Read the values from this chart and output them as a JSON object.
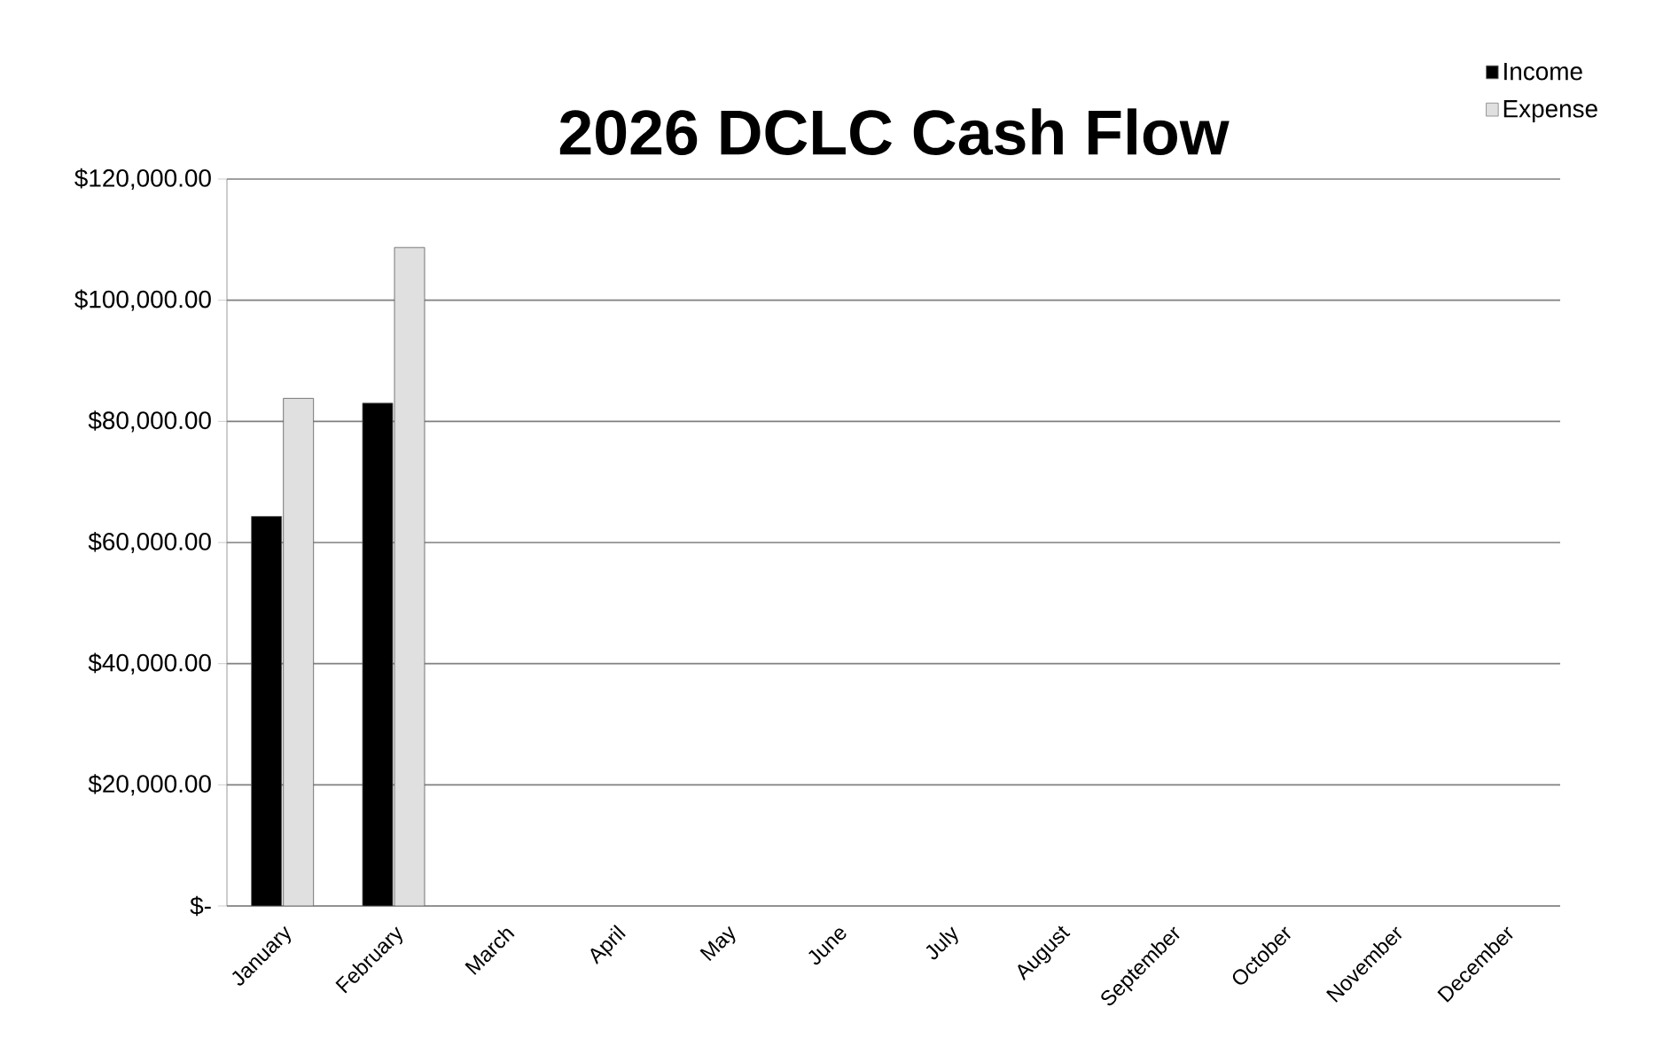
{
  "chart_data": {
    "type": "bar",
    "title": "2026  DCLC Cash Flow",
    "categories": [
      "January",
      "February",
      "March",
      "April",
      "May",
      "June",
      "July",
      "August",
      "September",
      "October",
      "November",
      "December"
    ],
    "series": [
      {
        "name": "Income",
        "color": "#000000",
        "values": [
          64300,
          83000,
          null,
          null,
          null,
          null,
          null,
          null,
          null,
          null,
          null,
          null
        ]
      },
      {
        "name": "Expense",
        "color": "#e0e0e0",
        "values": [
          83800,
          108700,
          null,
          null,
          null,
          null,
          null,
          null,
          null,
          null,
          null,
          null
        ]
      }
    ],
    "ylim": [
      0,
      120000
    ],
    "yticks": [
      {
        "value": 0,
        "label": "$-"
      },
      {
        "value": 20000,
        "label": "$20,000.00"
      },
      {
        "value": 40000,
        "label": "$40,000.00"
      },
      {
        "value": 60000,
        "label": "$60,000.00"
      },
      {
        "value": 80000,
        "label": "$80,000.00"
      },
      {
        "value": 100000,
        "label": "$100,000.00"
      },
      {
        "value": 120000,
        "label": "$120,000.00"
      }
    ],
    "grid": "y",
    "legend": "top right"
  }
}
